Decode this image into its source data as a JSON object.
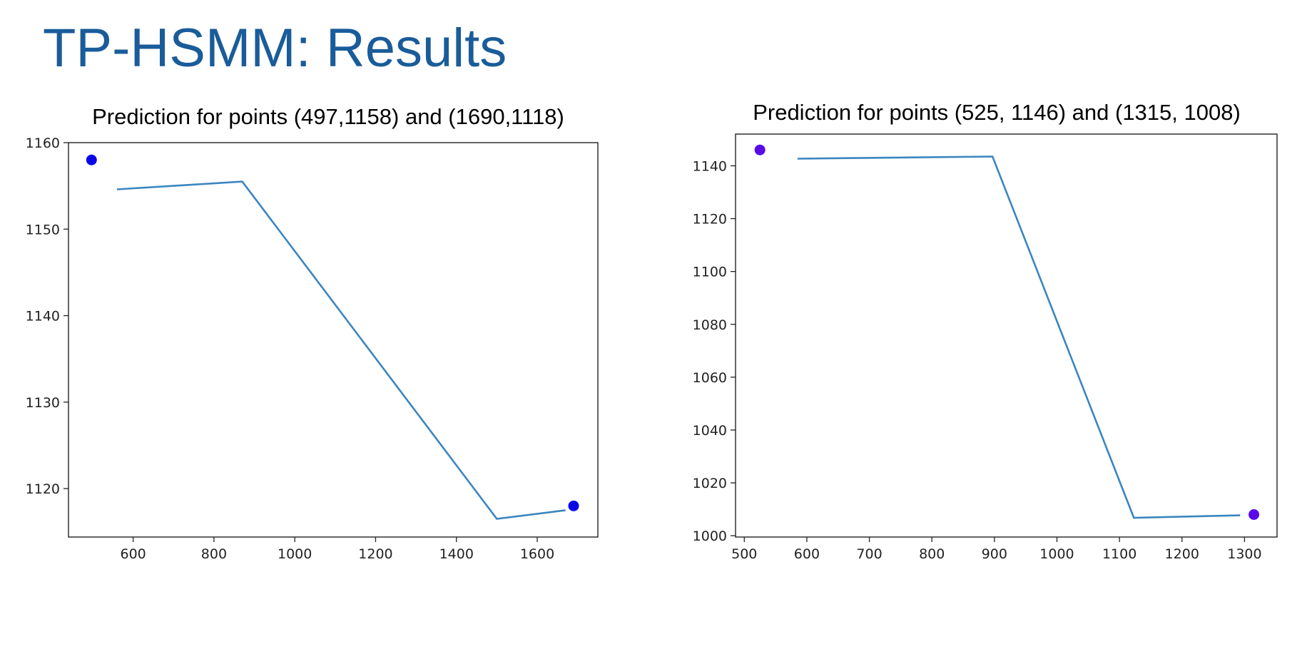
{
  "slide": {
    "title": "TP-HSMM: Results"
  },
  "colors": {
    "title": "#1a5c9a",
    "line": "#3a86c0",
    "point_left": "#0a05e8",
    "point_right": "#5a0ae6"
  },
  "chart_data": [
    {
      "type": "line",
      "title": "Prediction for points (497,1158) and (1690,1118)",
      "xlabel": "",
      "ylabel": "",
      "xlim": [
        440,
        1750
      ],
      "ylim": [
        1114.4,
        1160
      ],
      "x_ticks": [
        600,
        800,
        1000,
        1200,
        1400,
        1600
      ],
      "y_ticks": [
        1120,
        1130,
        1140,
        1150,
        1160
      ],
      "series": [
        {
          "x": [
            560,
            870,
            1500,
            1670
          ],
          "y": [
            1154.6,
            1155.5,
            1116.5,
            1117.5
          ]
        }
      ],
      "points": [
        {
          "x": 497,
          "y": 1158
        },
        {
          "x": 1690,
          "y": 1118
        }
      ],
      "grid": false
    },
    {
      "type": "line",
      "title": "Prediction for points (525, 1146) and (1315, 1008)",
      "xlabel": "",
      "ylabel": "",
      "xlim": [
        486,
        1352
      ],
      "ylim": [
        999.5,
        1152
      ],
      "x_ticks": [
        500,
        600,
        700,
        800,
        900,
        1000,
        1100,
        1200,
        1300
      ],
      "y_ticks": [
        1000,
        1020,
        1040,
        1060,
        1080,
        1100,
        1120,
        1140
      ],
      "series": [
        {
          "x": [
            585,
            897,
            1123,
            1293
          ],
          "y": [
            1142.7,
            1143.5,
            1006.8,
            1007.7
          ]
        }
      ],
      "points": [
        {
          "x": 525,
          "y": 1146
        },
        {
          "x": 1315,
          "y": 1008
        }
      ],
      "grid": false
    }
  ]
}
